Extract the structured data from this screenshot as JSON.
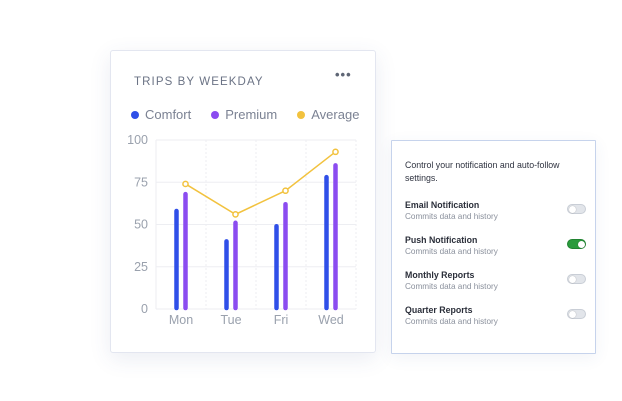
{
  "card": {
    "title": "TRIPS BY WEEKDAY",
    "more_label": "•••",
    "legend": [
      {
        "label": "Comfort",
        "color": "#2f4fe8"
      },
      {
        "label": "Premium",
        "color": "#8b4cf0"
      },
      {
        "label": "Average",
        "color": "#f2c23e"
      }
    ]
  },
  "chart_data": {
    "type": "bar",
    "title": "TRIPS BY WEEKDAY",
    "categories": [
      "Mon",
      "Tue",
      "Fri",
      "Wed"
    ],
    "series": [
      {
        "name": "Comfort",
        "type": "bar",
        "color": "#2f4fe8",
        "values": [
          58,
          40,
          49,
          78
        ]
      },
      {
        "name": "Premium",
        "type": "bar",
        "color": "#8b4cf0",
        "values": [
          68,
          51,
          62,
          85
        ]
      },
      {
        "name": "Average",
        "type": "line",
        "color": "#f2c23e",
        "values": [
          74,
          56,
          70,
          93
        ]
      }
    ],
    "yticks": [
      "100",
      "75",
      "50",
      "25",
      "0"
    ],
    "ylim": [
      0,
      100
    ],
    "grid": true
  },
  "panel": {
    "description": "Control your notification and auto-follow settings.",
    "settings": [
      {
        "title": "Email Notification",
        "subtitle": "Commits data and history",
        "on": false
      },
      {
        "title": "Push Notification",
        "subtitle": "Commits data and history",
        "on": true
      },
      {
        "title": "Monthly Reports",
        "subtitle": "Commits data and history",
        "on": false
      },
      {
        "title": "Quarter Reports",
        "subtitle": "Commits data and history",
        "on": false
      }
    ]
  }
}
